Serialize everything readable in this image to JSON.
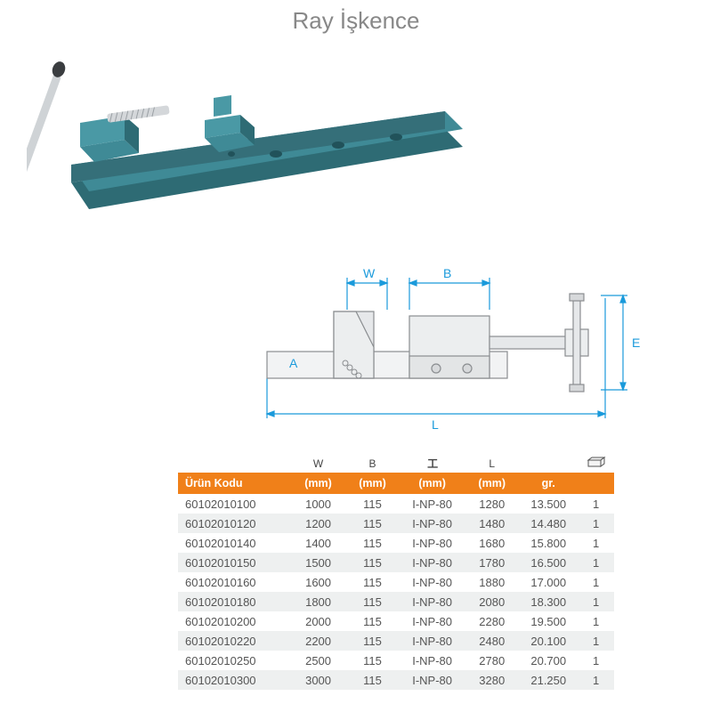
{
  "title": "Ray İşkence",
  "photo": {
    "rail_color": "#3f8a96",
    "rail_shadow": "#2e6b74",
    "handle_color": "#bfc3c6",
    "handle_end": "#4a4d50",
    "screw_color": "#d4d7da"
  },
  "schematic": {
    "line_color": "#1a9adb",
    "body_color": "#dfe2e4",
    "outline_color": "#8a8d90",
    "labels": {
      "W": "W",
      "B": "B",
      "E": "E",
      "L": "L",
      "A": "A"
    }
  },
  "table": {
    "header_bg": "#f08019",
    "header_fg": "#ffffff",
    "alt_bg": "#eef0f0",
    "text_color": "#555555",
    "columns": [
      {
        "top": "",
        "label": "Ürün Kodu"
      },
      {
        "top": "W",
        "label": "(mm)"
      },
      {
        "top": "B",
        "label": "(mm)"
      },
      {
        "top": "H",
        "label": "(mm)"
      },
      {
        "top": "L",
        "label": "(mm)"
      },
      {
        "top": "",
        "label": "gr."
      },
      {
        "top": "box",
        "label": ""
      }
    ],
    "rows": [
      [
        "60102010100",
        "1000",
        "115",
        "I-NP-80",
        "1280",
        "13.500",
        "1"
      ],
      [
        "60102010120",
        "1200",
        "115",
        "I-NP-80",
        "1480",
        "14.480",
        "1"
      ],
      [
        "60102010140",
        "1400",
        "115",
        "I-NP-80",
        "1680",
        "15.800",
        "1"
      ],
      [
        "60102010150",
        "1500",
        "115",
        "I-NP-80",
        "1780",
        "16.500",
        "1"
      ],
      [
        "60102010160",
        "1600",
        "115",
        "I-NP-80",
        "1880",
        "17.000",
        "1"
      ],
      [
        "60102010180",
        "1800",
        "115",
        "I-NP-80",
        "2080",
        "18.300",
        "1"
      ],
      [
        "60102010200",
        "2000",
        "115",
        "I-NP-80",
        "2280",
        "19.500",
        "1"
      ],
      [
        "60102010220",
        "2200",
        "115",
        "I-NP-80",
        "2480",
        "20.100",
        "1"
      ],
      [
        "60102010250",
        "2500",
        "115",
        "I-NP-80",
        "2780",
        "20.700",
        "1"
      ],
      [
        "60102010300",
        "3000",
        "115",
        "I-NP-80",
        "3280",
        "21.250",
        "1"
      ]
    ]
  }
}
